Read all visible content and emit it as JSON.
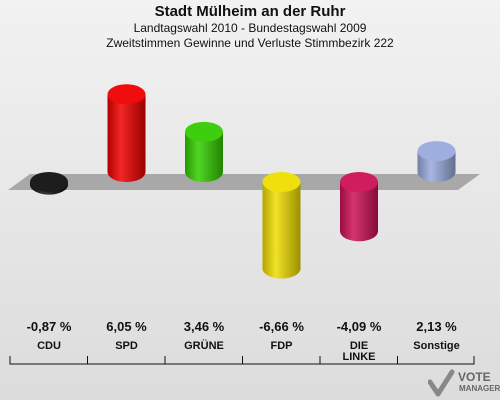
{
  "title": "Stadt Mülheim an der Ruhr",
  "subtitle1": "Landtagswahl 2010 - Bundestagswahl 2009",
  "subtitle2": "Zweitstimmen Gewinne und Verluste Stimmbezirk 222",
  "logo": {
    "line1": "VOTE",
    "line2": "MANAGER"
  },
  "chart_data": {
    "type": "bar",
    "categories": [
      "CDU",
      "SPD",
      "GRÜNE",
      "FDP",
      "DIE LINKE",
      "Sonstige"
    ],
    "values": [
      -0.87,
      6.05,
      3.46,
      -6.66,
      -4.09,
      2.13
    ],
    "value_labels": [
      "-0,87 %",
      "6,05 %",
      "3,46 %",
      "-6,66 %",
      "-4,09 %",
      "2,13 %"
    ],
    "colors": [
      "#111111",
      "#ee0000",
      "#33cc00",
      "#eedd00",
      "#cc1155",
      "#99aadd"
    ],
    "title": "Stadt Mülheim an der Ruhr",
    "xlabel": "",
    "ylabel": "",
    "grid": false
  }
}
